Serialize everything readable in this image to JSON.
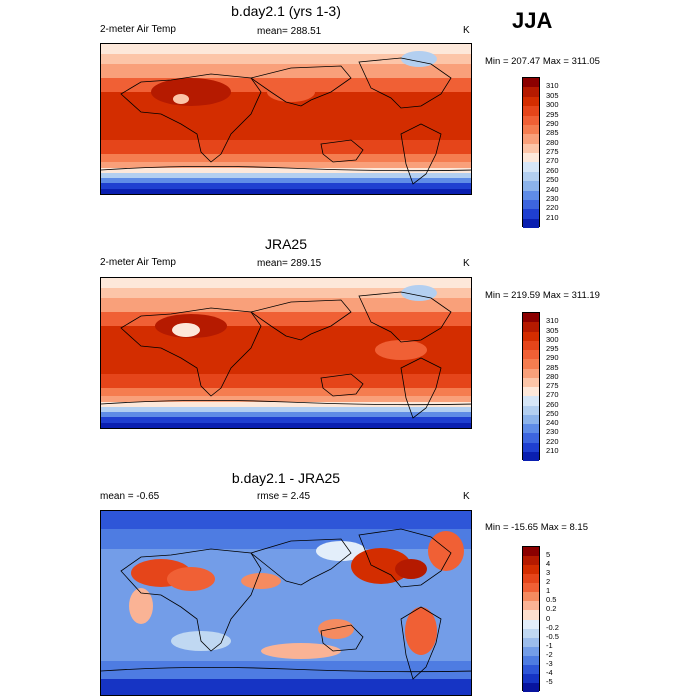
{
  "season": "JJA",
  "panels": [
    {
      "title": "b.day2.1 (yrs 1-3)",
      "left_label": "2-meter Air Temp",
      "center_label": "mean= 288.51",
      "unit": "K",
      "minmax": "Min = 207.47 Max = 311.05",
      "colorbar": {
        "labels": [
          "310",
          "305",
          "300",
          "295",
          "290",
          "285",
          "280",
          "275",
          "270",
          "260",
          "250",
          "240",
          "230",
          "220",
          "210"
        ],
        "colors": [
          "#8b0000",
          "#b51a00",
          "#d32d00",
          "#e5451a",
          "#f06035",
          "#f57d50",
          "#f9a07a",
          "#fcc5a8",
          "#fde8da",
          "#d6e6f7",
          "#b3cff0",
          "#8cb3ea",
          "#5f8ce6",
          "#3d65de",
          "#1f3fd0",
          "#0a1fb0"
        ]
      }
    },
    {
      "title": "JRA25",
      "left_label": "2-meter Air Temp",
      "center_label": "mean= 289.15",
      "unit": "K",
      "minmax": "Min = 219.59 Max = 311.19",
      "colorbar": {
        "labels": [
          "310",
          "305",
          "300",
          "295",
          "290",
          "285",
          "280",
          "275",
          "270",
          "260",
          "250",
          "240",
          "230",
          "220",
          "210"
        ],
        "colors": [
          "#8b0000",
          "#b51a00",
          "#d32d00",
          "#e5451a",
          "#f06035",
          "#f57d50",
          "#f9a07a",
          "#fcc5a8",
          "#fde8da",
          "#d6e6f7",
          "#b3cff0",
          "#8cb3ea",
          "#5f8ce6",
          "#3d65de",
          "#1f3fd0",
          "#0a1fb0"
        ]
      }
    },
    {
      "title": "b.day2.1 - JRA25",
      "left_label": "mean = -0.65",
      "center_label": "rmse = 2.45",
      "unit": "K",
      "minmax": "Min = -15.65 Max = 8.15",
      "colorbar": {
        "labels": [
          "5",
          "4",
          "3",
          "2",
          "1",
          "0.5",
          "0.2",
          "0",
          "-0.2",
          "-0.5",
          "-1",
          "-2",
          "-3",
          "-4",
          "-5"
        ],
        "colors": [
          "#8b0000",
          "#b51a00",
          "#d32d00",
          "#e5451a",
          "#f06035",
          "#f58b60",
          "#fab395",
          "#fde0cf",
          "#e3eefa",
          "#c0d8f2",
          "#9cbdec",
          "#739de8",
          "#4e7ce2",
          "#2e56d8",
          "#1634c4",
          "#08149e"
        ]
      }
    }
  ]
}
